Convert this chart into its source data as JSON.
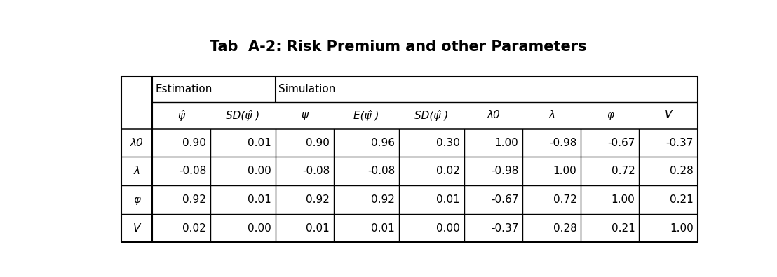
{
  "title": "Tab  A-2: Risk Premium and other Parameters",
  "title_fontsize": 15,
  "col_headers": [
    "ψ̂",
    "SD(ψ̂ )",
    "ψ",
    "E(ψ̂ )",
    "SD(ψ̂ )",
    "λ0",
    "λ",
    "φ",
    "V"
  ],
  "row_headers": [
    "λ0",
    "λ",
    "φ",
    "V"
  ],
  "data": [
    [
      "0.90",
      "0.01",
      "0.90",
      "0.96",
      "0.30",
      "1.00",
      "-0.98",
      "-0.67",
      "-0.37"
    ],
    [
      "-0.08",
      "0.00",
      "-0.08",
      "-0.08",
      "0.02",
      "-0.98",
      "1.00",
      "0.72",
      "0.28"
    ],
    [
      "0.92",
      "0.01",
      "0.92",
      "0.92",
      "0.01",
      "-0.67",
      "0.72",
      "1.00",
      "0.21"
    ],
    [
      "0.02",
      "0.00",
      "0.01",
      "0.01",
      "0.00",
      "-0.37",
      "0.28",
      "0.21",
      "1.00"
    ]
  ],
  "bg_color": "#ffffff",
  "line_color": "#000000",
  "text_color": "#000000",
  "header_fontsize": 11,
  "cell_fontsize": 11,
  "estimation_label": "Estimation",
  "simulation_label": "Simulation"
}
